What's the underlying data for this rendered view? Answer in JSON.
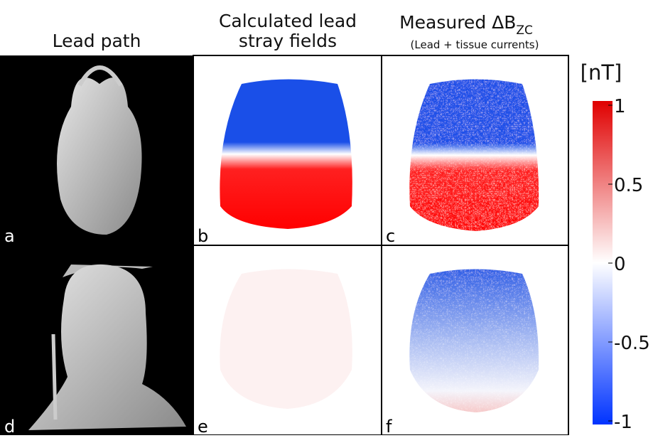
{
  "headers": {
    "col1": "Lead path",
    "col2_line1": "Calculated lead",
    "col2_line2": "stray fields",
    "col3_main": "Measured ΔB",
    "col3_sub": "ZC",
    "col3_note": "(Lead + tissue currents)"
  },
  "panels": {
    "labels": [
      "a",
      "b",
      "c",
      "d",
      "e",
      "f"
    ]
  },
  "colorbar": {
    "unit": "[nT]",
    "lim": [
      -1,
      1
    ],
    "ticks": [
      1,
      0.5,
      0,
      -0.5,
      -1
    ]
  }
}
